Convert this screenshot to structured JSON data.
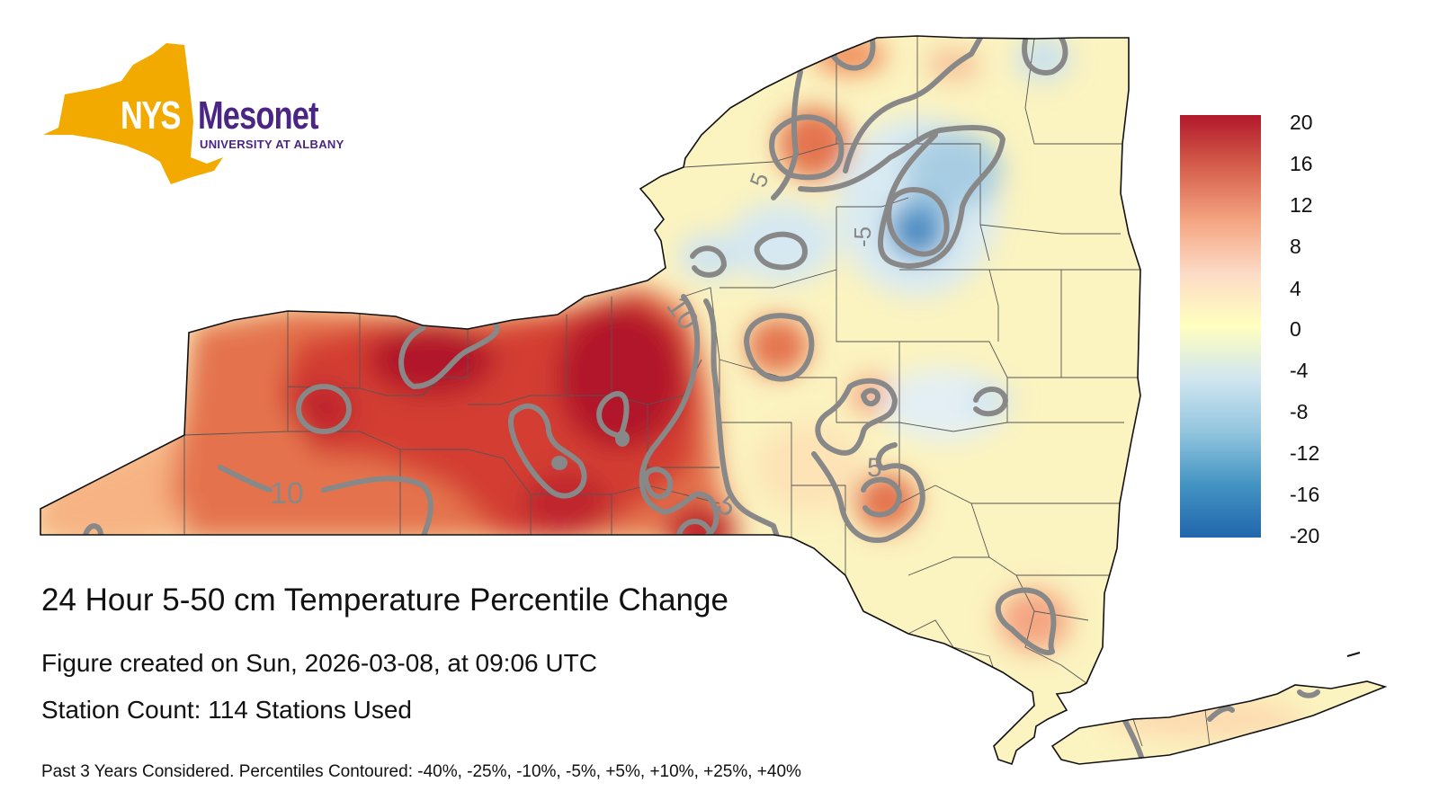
{
  "logo": {
    "nys": "NYS",
    "mesonet": "Mesonet",
    "university": "UNIVERSITY AT ALBANY",
    "gold": "#f2aa00",
    "purple": "#4b2583"
  },
  "legend": {
    "ticks": [
      "20",
      "16",
      "12",
      "8",
      "4",
      "0",
      "-4",
      "-8",
      "-12",
      "-16",
      "-20"
    ],
    "range": [
      -20,
      20
    ],
    "colors": [
      "#b2182b",
      "#d6604d",
      "#f4a582",
      "#fddbc7",
      "#ffffbf",
      "#d1e5f0",
      "#92c5de",
      "#4393c3",
      "#2166ac"
    ]
  },
  "contour_labels": [
    "10",
    "10",
    "5",
    "5",
    "-5",
    "-5",
    "5"
  ],
  "titles": {
    "main": "24 Hour 5-50 cm Temperature Percentile Change",
    "created": "Figure created on Sun, 2026-03-08, at 09:06 UTC",
    "station_count": "Station Count: 114 Stations Used",
    "note": "Past 3 Years Considered. Percentiles Contoured: -40%, -25%, -10%, -5%, +5%, +10%, +25%, +40%"
  },
  "colors": {
    "contour": "#888888",
    "state_border": "#111111",
    "county_border": "#555555"
  }
}
